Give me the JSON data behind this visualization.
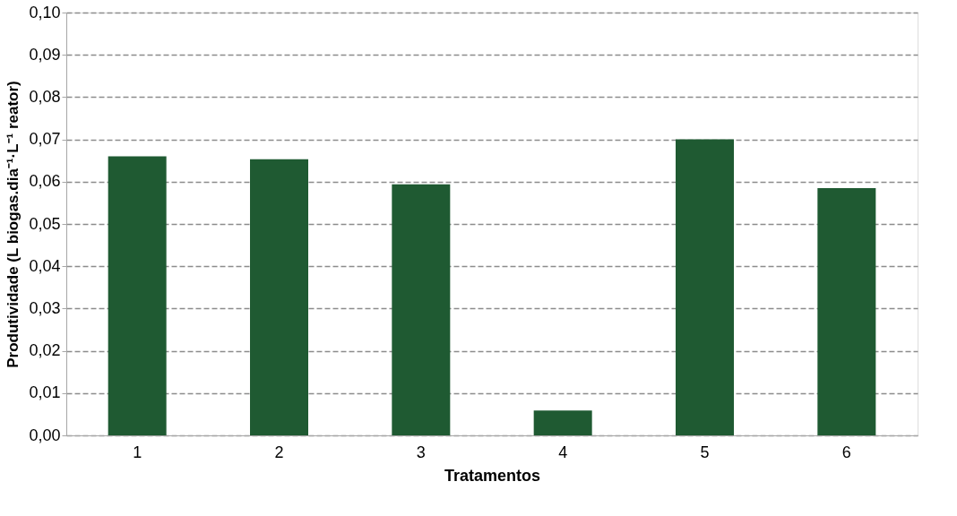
{
  "chart_data": {
    "type": "bar",
    "xlabel": "Tratamentos",
    "ylabel": "Produtividade (L biogas.dia⁻¹·L⁻¹ reator)",
    "categories": [
      "1",
      "2",
      "3",
      "4",
      "5",
      "6"
    ],
    "values": [
      0.066,
      0.0653,
      0.0594,
      0.0059,
      0.07,
      0.0585
    ],
    "color": "#1f5a32",
    "ylim": [
      0,
      0.1
    ],
    "yticks": [
      {
        "value": 0,
        "label": "0,00"
      },
      {
        "value": 0.01,
        "label": "0,01"
      },
      {
        "value": 0.02,
        "label": "0,02"
      },
      {
        "value": 0.03,
        "label": "0,03"
      },
      {
        "value": 0.04,
        "label": "0,04"
      },
      {
        "value": 0.05,
        "label": "0,05"
      },
      {
        "value": 0.06,
        "label": "0,06"
      },
      {
        "value": 0.07,
        "label": "0,07"
      },
      {
        "value": 0.08,
        "label": "0,08"
      },
      {
        "value": 0.09,
        "label": "0,09"
      },
      {
        "value": 0.1,
        "label": "0,10"
      }
    ],
    "grid": "y",
    "line_style": "dashed"
  }
}
